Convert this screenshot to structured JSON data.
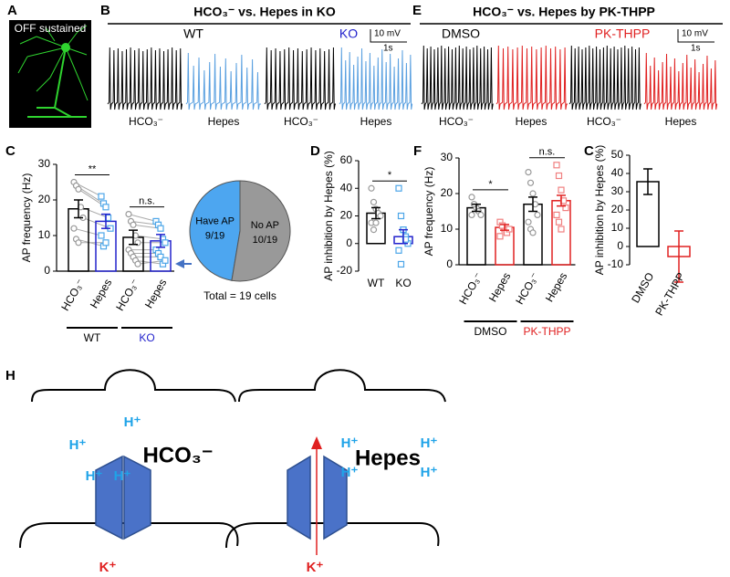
{
  "panel_labels": [
    "A",
    "B",
    "C",
    "D",
    "E",
    "F",
    "C",
    "H"
  ],
  "panel_a": {
    "caption": "OFF sustained"
  },
  "panel_b": {
    "title": "HCO₃⁻ vs. Hepes in KO",
    "groups": [
      "WT",
      "KO"
    ],
    "scale": [
      "10 mV",
      "1s"
    ],
    "trace_labels": [
      "HCO₃⁻",
      "Hepes",
      "HCO₃⁻",
      "Hepes"
    ]
  },
  "panel_e": {
    "title": "HCO₃⁻ vs. Hepes by PK-THPP",
    "groups": [
      "DMSO",
      "PK-THPP"
    ],
    "scale": [
      "10 mV",
      "1s"
    ],
    "trace_labels": [
      "HCO₃⁻",
      "Hepes",
      "HCO₃⁻",
      "Hepes"
    ]
  },
  "chart_data": [
    {
      "type": "bar",
      "ylabel": "AP frequency (Hz)",
      "categories": [
        "HCO₃⁻",
        "Hepes",
        "HCO₃⁻",
        "Hepes"
      ],
      "values": [
        17.5,
        14,
        9.5,
        8.5
      ],
      "errors": [
        2.5,
        2,
        2,
        1.8
      ],
      "colors": [
        "#000000",
        "#2222cc",
        "#000000",
        "#2222cc"
      ],
      "point_colors": [
        "#999999",
        "#4da6e8",
        "#999999",
        "#4da6e8"
      ],
      "markers": [
        "circle",
        "square",
        "circle",
        "square"
      ],
      "points": [
        [
          25,
          24,
          23,
          18,
          15,
          12,
          9,
          8
        ],
        [
          21,
          19,
          18,
          15,
          12,
          10,
          7,
          8
        ],
        [
          16,
          14,
          13,
          10,
          8,
          6,
          5,
          4,
          3,
          2
        ],
        [
          14,
          13,
          12,
          9,
          8,
          6,
          5,
          4,
          2,
          3
        ]
      ],
      "paired": true,
      "annotations": [
        "**",
        "n.s."
      ],
      "groups": [
        {
          "label": "WT",
          "color": "#000000"
        },
        {
          "label": "KO",
          "color": "#2222cc"
        }
      ],
      "ylim": [
        0,
        30
      ],
      "yticks": [
        0,
        10,
        20,
        30
      ]
    },
    {
      "type": "pie",
      "categories": [
        "Have AP",
        "No AP"
      ],
      "values": [
        9,
        10
      ],
      "value_labels": [
        "9/19",
        "10/19"
      ],
      "colors": [
        "#4da6f0",
        "#999999"
      ],
      "note": "Total = 19 cells"
    },
    {
      "type": "bar",
      "ylabel": "AP inhibition by Hepes (%)",
      "categories": [
        "WT",
        "KO"
      ],
      "values": [
        22,
        5
      ],
      "errors": [
        4,
        5
      ],
      "colors": [
        "#000000",
        "#2222cc"
      ],
      "point_colors": [
        "#999999",
        "#4da6e8"
      ],
      "markers": [
        "circle",
        "square"
      ],
      "points": [
        [
          40,
          30,
          25,
          22,
          20,
          15,
          10,
          15
        ],
        [
          40,
          20,
          10,
          5,
          0,
          -5,
          -15,
          10,
          3
        ]
      ],
      "annotations": [
        "*"
      ],
      "ylim": [
        -20,
        60
      ],
      "yticks": [
        -20,
        0,
        20,
        40,
        60
      ]
    },
    {
      "type": "bar",
      "ylabel": "AP frequency (Hz)",
      "categories": [
        "HCO₃⁻",
        "Hepes",
        "HCO₃⁻",
        "Hepes"
      ],
      "values": [
        16,
        10.5,
        17,
        18
      ],
      "errors": [
        1,
        0.8,
        2,
        1.5
      ],
      "colors": [
        "#000000",
        "#e02020",
        "#000000",
        "#e02020"
      ],
      "point_colors": [
        "#999999",
        "#f08080",
        "#999999",
        "#f08080"
      ],
      "markers": [
        "circle",
        "square",
        "circle",
        "square"
      ],
      "points": [
        [
          19,
          17,
          16,
          15,
          14,
          14,
          17
        ],
        [
          12,
          11,
          10,
          9,
          10,
          8,
          11
        ],
        [
          26,
          23,
          20,
          17,
          14,
          12,
          10,
          9
        ],
        [
          28,
          25,
          21,
          18,
          16,
          14,
          12,
          10
        ]
      ],
      "annotations": [
        "*",
        "n.s."
      ],
      "groups": [
        {
          "label": "DMSO",
          "color": "#000000"
        },
        {
          "label": "PK-THPP",
          "color": "#e02020"
        }
      ],
      "ylim": [
        0,
        30
      ],
      "yticks": [
        0,
        10,
        20,
        30
      ]
    },
    {
      "type": "bar",
      "ylabel": "AP inhibition by Hepes (%)",
      "categories": [
        "DMSO",
        "PK-THPP"
      ],
      "values": [
        35.5,
        -5.5
      ],
      "errors": [
        7,
        14
      ],
      "colors": [
        "#000000",
        "#e02020"
      ],
      "ylim": [
        -10,
        50
      ],
      "yticks": [
        -10,
        0,
        10,
        20,
        30,
        40,
        50
      ]
    }
  ],
  "diagram": {
    "left": {
      "ions": [
        "H⁺",
        "H⁺",
        "H⁺",
        "H⁺"
      ],
      "buffer": "HCO₃⁻",
      "efflux": "K⁺"
    },
    "right": {
      "ions": [
        "H⁺",
        "H⁺",
        "H⁺",
        "H⁺"
      ],
      "buffer": "Hepes",
      "efflux": "K⁺"
    }
  }
}
